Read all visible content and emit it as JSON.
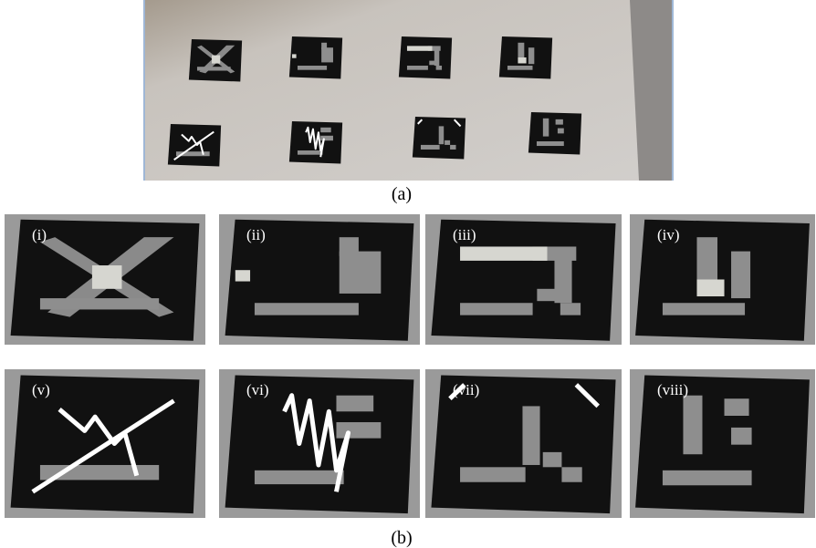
{
  "captions": {
    "a": "(a)",
    "b": "(b)"
  },
  "markers": [
    "(i)",
    "(ii)",
    "(iii)",
    "(iv)",
    "(v)",
    "(vi)",
    "(vii)",
    "(viii)"
  ]
}
